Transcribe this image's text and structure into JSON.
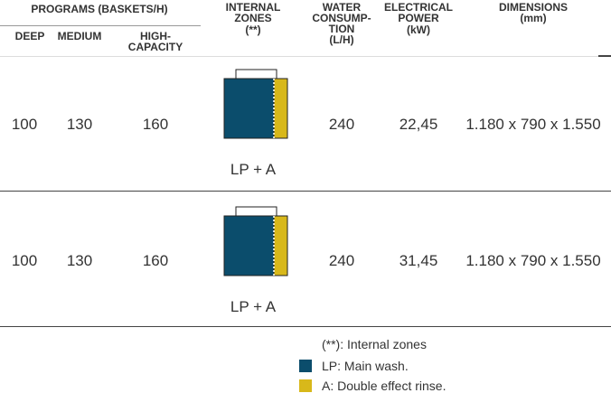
{
  "header": {
    "programs": "PROGRAMS (BASKETS/H)",
    "deep": "DEEP",
    "medium": "MEDIUM",
    "high_capacity": [
      "HIGH-",
      "CAPACITY"
    ],
    "internal_zones": [
      "INTERNAL",
      "ZONES",
      "(**)"
    ],
    "water": [
      "WATER",
      "CONSUMP-",
      "TION",
      "(L/H)"
    ],
    "power": [
      "ELECTRICAL",
      "POWER",
      "(kW)"
    ],
    "dimensions": [
      "DIMENSIONS",
      "(mm)"
    ]
  },
  "table": {
    "rows": [
      [
        "100",
        "130",
        "160",
        "LP + A",
        "240",
        "22,45",
        "1.180 x 790 x 1.550"
      ],
      [
        "100",
        "130",
        "160",
        "LP + A",
        "240",
        "31,45",
        "1.180 x 790 x 1.550"
      ]
    ]
  },
  "legend": {
    "note": "(**): Internal zones",
    "lp": "LP: Main wash.",
    "a": "A: Double effect rinse."
  }
}
